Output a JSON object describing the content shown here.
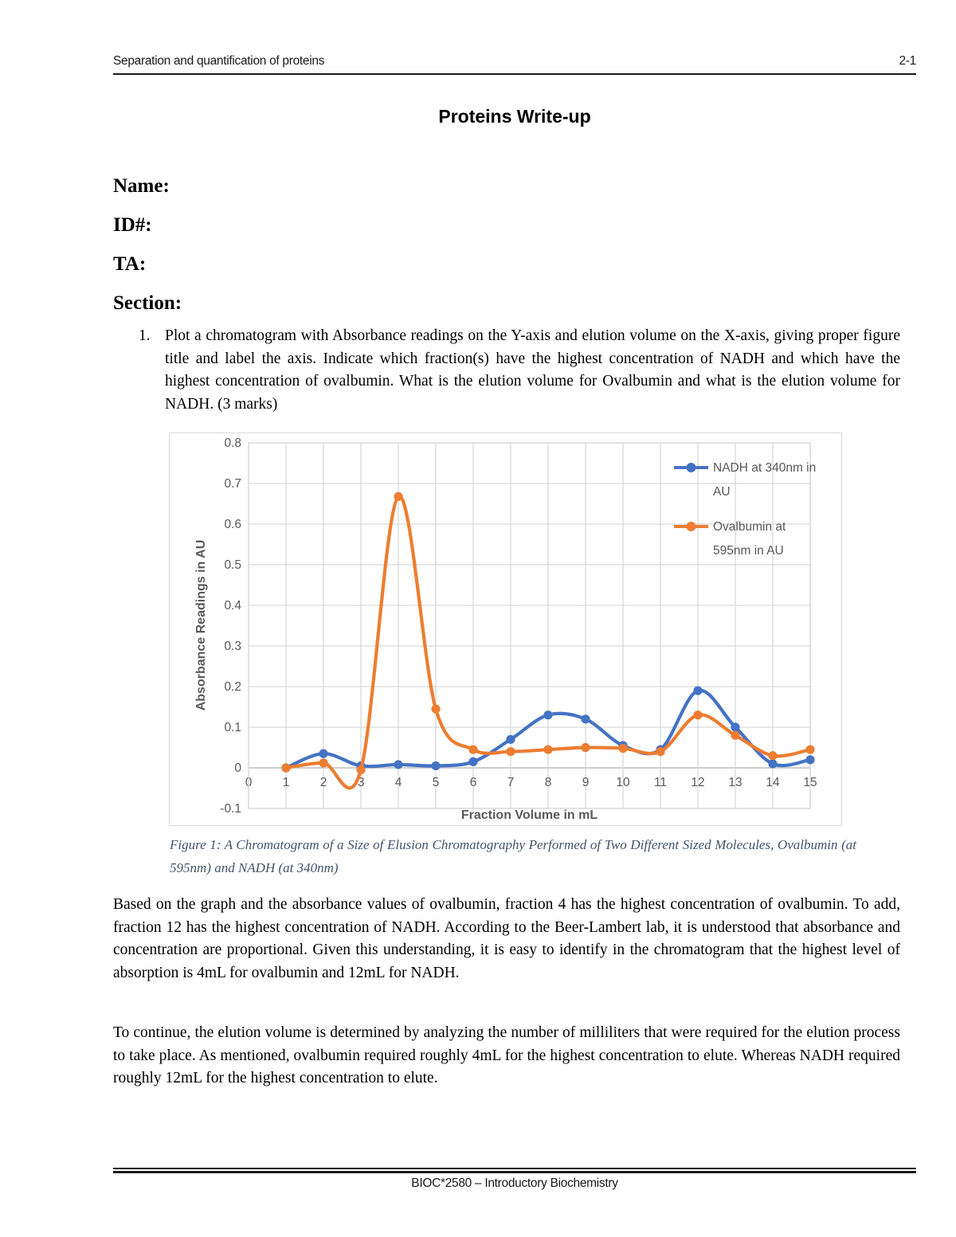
{
  "header": {
    "left": "Separation and quantification of proteins",
    "right": "2-1"
  },
  "title": "Proteins Write-up",
  "fields": [
    {
      "label": "Name:"
    },
    {
      "label": "ID#:"
    },
    {
      "label": "TA:"
    },
    {
      "label": "Section:"
    }
  ],
  "question": {
    "number": "1.",
    "text": "Plot a chromatogram with Absorbance readings on the Y-axis and elution volume on the X-axis, giving proper figure title and label the axis.  Indicate which fraction(s) have the highest concentration of NADH and which have the highest concentration of ovalbumin. What is the elution volume for Ovalbumin and what is the elution volume for NADH. (3 marks)"
  },
  "figure_caption": "Figure 1: A Chromatogram of a Size of Elusion Chromatography Performed of Two Different Sized Molecules, Ovalbumin (at 595nm) and NADH (at 340nm)",
  "paragraphs": [
    "Based on the graph and the absorbance values of ovalbumin, fraction 4 has the highest concentration of ovalbumin. To add, fraction 12 has the highest concentration of NADH. According to the Beer-Lambert lab, it is understood that absorbance and concentration are proportional. Given this understanding, it is easy to identify in the chromatogram that the highest level of absorption is 4mL for ovalbumin and 12mL for NADH.",
    "To continue, the elution volume is determined by analyzing the number of milliliters that were required for the elution process to take place. As mentioned, ovalbumin required roughly 4mL for the highest concentration to elute. Whereas NADH required roughly 12mL for the highest concentration to elute."
  ],
  "footer": "BIOC*2580 – Introductory Biochemistry",
  "chart_data": {
    "type": "line",
    "title": "",
    "xlabel": "Fraction Volume in mL",
    "ylabel": "Absorbance Readings in AU",
    "xlim": [
      0,
      15
    ],
    "ylim": [
      -0.1,
      0.8
    ],
    "x_tick_step": 1,
    "y_tick_step": 0.1,
    "grid": true,
    "x": [
      1,
      2,
      3,
      4,
      5,
      6,
      7,
      8,
      9,
      10,
      11,
      12,
      13,
      14,
      15
    ],
    "series": [
      {
        "name": "NADH at 340nm in AU",
        "color": "#4472C4",
        "values": [
          0,
          0.035,
          0.005,
          0.008,
          0.005,
          0.015,
          0.07,
          0.13,
          0.12,
          0.055,
          0.045,
          0.19,
          0.1,
          0.01,
          0.02
        ]
      },
      {
        "name": "Ovalbumin at 595nm in AU",
        "color": "#ED7D31",
        "values": [
          0,
          0.012,
          -0.005,
          0.668,
          0.145,
          0.045,
          0.04,
          0.045,
          0.05,
          0.048,
          0.04,
          0.13,
          0.08,
          0.03,
          0.045
        ]
      }
    ],
    "legend": {
      "position": "right-inside",
      "items": [
        {
          "lines": [
            "NADH at 340nm in",
            "AU"
          ]
        },
        {
          "lines": [
            "Ovalbumin at",
            "595nm in AU"
          ]
        }
      ]
    },
    "grid_color": "#D9D9D9",
    "axis_line_color": "#BFBFBF",
    "text_color": "#595959"
  }
}
